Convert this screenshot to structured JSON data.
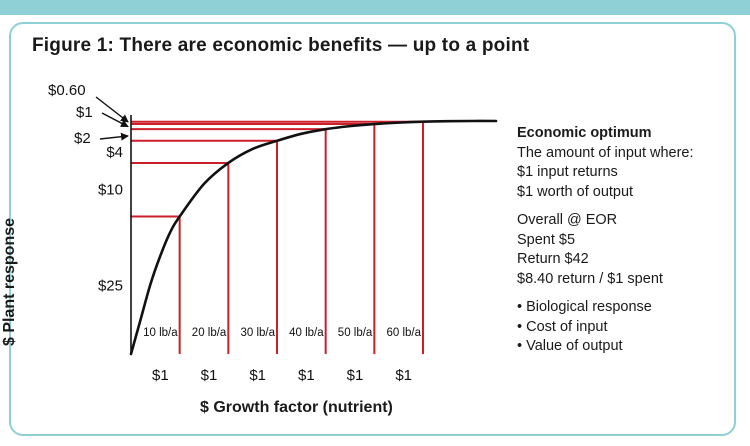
{
  "title": "Figure 1: There are economic benefits — up to a point",
  "colors": {
    "accent": "#8fd0d6",
    "response": "#cc1f2a",
    "curve": "#111111"
  },
  "chart_data": {
    "type": "line",
    "title": "Figure 1: There are economic benefits — up to a point",
    "xlabel": "$ Growth factor (nutrient)",
    "ylabel": "$ Plant response",
    "x_tick_labels": [
      "10 lb/a",
      "20 lb/a",
      "30 lb/a",
      "40 lb/a",
      "50 lb/a",
      "60 lb/a"
    ],
    "x_increment_labels": [
      "$1",
      "$1",
      "$1",
      "$1",
      "$1",
      "$1"
    ],
    "y_return_labels": [
      "$0.60",
      "$1",
      "$2",
      "$4",
      "$10",
      "$25"
    ],
    "xlim": [
      0,
      75
    ],
    "ylim": [
      0,
      1
    ],
    "curve": {
      "x": [
        0,
        2,
        4,
        6,
        8,
        10,
        15,
        20,
        25,
        30,
        35,
        40,
        45,
        50,
        55,
        60,
        65,
        70,
        75
      ],
      "y": [
        0,
        0.15,
        0.3,
        0.42,
        0.52,
        0.59,
        0.73,
        0.82,
        0.88,
        0.915,
        0.945,
        0.965,
        0.978,
        0.987,
        0.993,
        0.997,
        0.999,
        1.0,
        1.0
      ]
    },
    "response_points": [
      {
        "x": 10,
        "y": 0.59
      },
      {
        "x": 20,
        "y": 0.82
      },
      {
        "x": 30,
        "y": 0.915
      },
      {
        "x": 40,
        "y": 0.965
      },
      {
        "x": 50,
        "y": 0.987
      },
      {
        "x": 60,
        "y": 0.997
      }
    ]
  },
  "notes": {
    "heading": "Economic optimum",
    "lines": [
      "The amount of input where:",
      "$1 input returns",
      "$1 worth of output"
    ],
    "eor_lines": [
      "Overall @ EOR",
      "Spent $5",
      "Return $42",
      "$8.40 return / $1 spent"
    ],
    "bullets": [
      "• Biological response",
      "• Cost of input",
      "• Value of output"
    ]
  }
}
